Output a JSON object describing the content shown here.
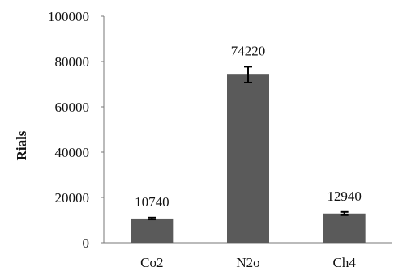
{
  "chart_data": {
    "type": "bar",
    "categories": [
      "Co2",
      "N2o",
      "Ch4"
    ],
    "values": [
      10740,
      74220,
      12940
    ],
    "value_labels": [
      "10740",
      "74220",
      "12940"
    ],
    "error": [
      400,
      3500,
      700
    ],
    "ylabel": "Rials",
    "xlabel": "",
    "ylim": [
      0,
      100000
    ],
    "yticks": [
      0,
      20000,
      40000,
      60000,
      80000,
      100000
    ],
    "ytick_labels": [
      "0",
      "20000",
      "40000",
      "60000",
      "80000",
      "100000"
    ],
    "grid": false,
    "legend": "none",
    "bar_color": "#5a5a5a"
  }
}
